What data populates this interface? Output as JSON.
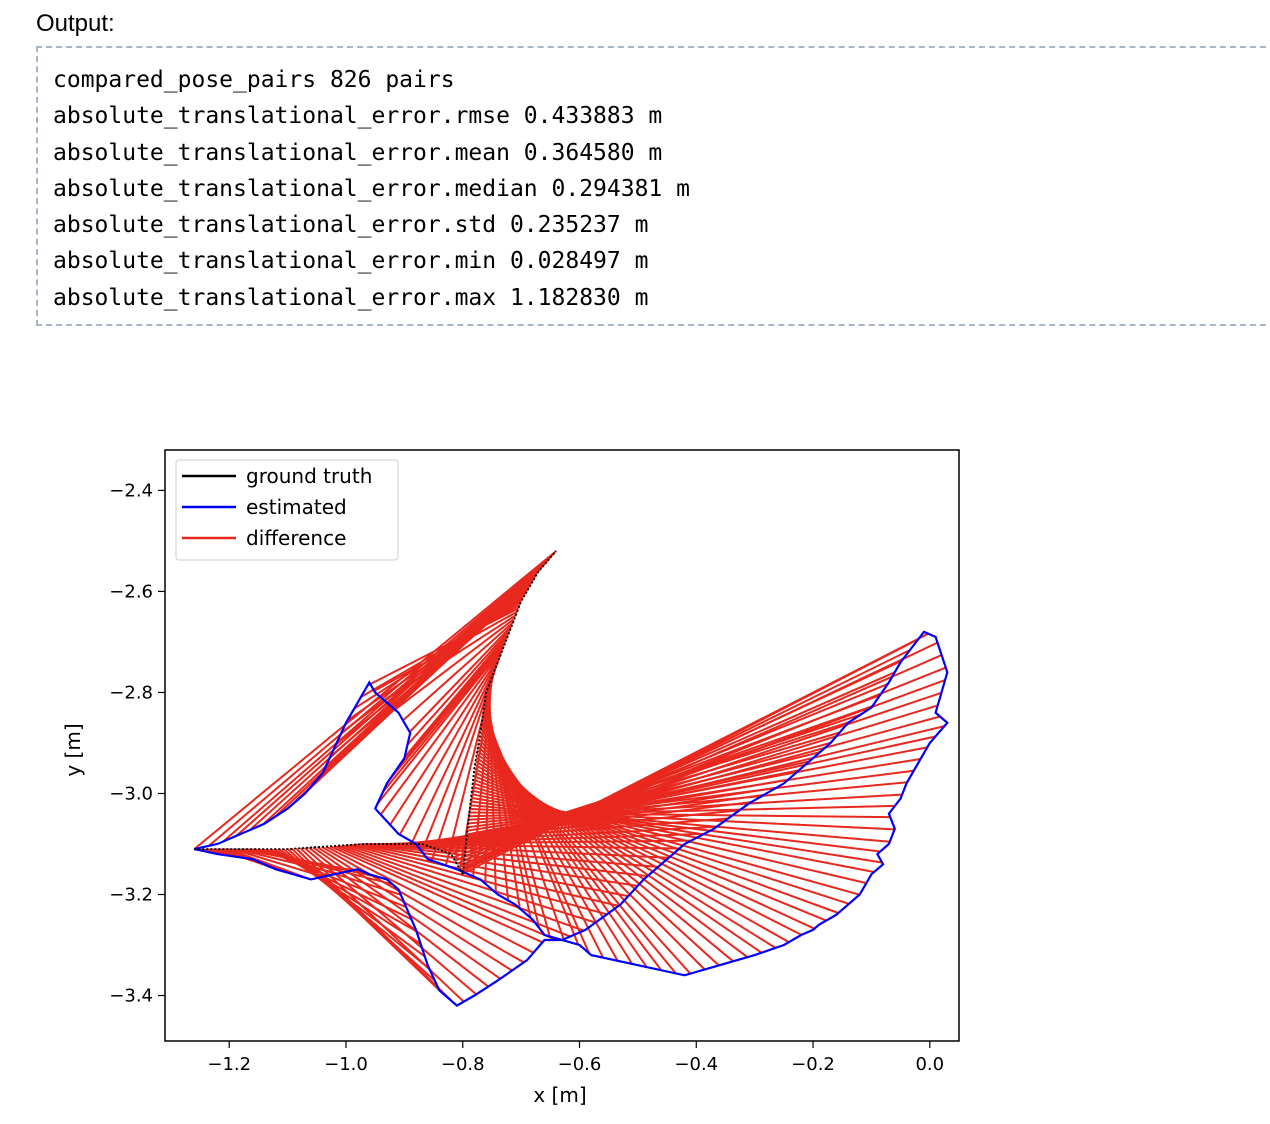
{
  "output_label": "Output:",
  "console_lines": [
    "compared_pose_pairs 826 pairs",
    "absolute_translational_error.rmse 0.433883 m",
    "absolute_translational_error.mean 0.364580 m",
    "absolute_translational_error.median 0.294381 m",
    "absolute_translational_error.std 0.235237 m",
    "absolute_translational_error.min 0.028497 m",
    "absolute_translational_error.max 1.182830 m"
  ],
  "chart_data": {
    "type": "line",
    "xlabel": "x [m]",
    "ylabel": "y [m]",
    "xlim": [
      -1.31,
      0.05
    ],
    "ylim": [
      -3.49,
      -2.32
    ],
    "xticks": [
      -1.2,
      -1.0,
      -0.8,
      -0.6,
      -0.4,
      -0.2,
      0.0
    ],
    "yticks": [
      -2.4,
      -2.6,
      -2.8,
      -3.0,
      -3.2,
      -3.4
    ],
    "xtick_labels": [
      "−1.2",
      "−1.0",
      "−0.8",
      "−0.6",
      "−0.4",
      "−0.2",
      "0.0"
    ],
    "ytick_labels": [
      "−2.4",
      "−2.6",
      "−2.8",
      "−3.0",
      "−3.2",
      "−3.4"
    ],
    "legend_position": "top-left",
    "grid": false,
    "series": [
      {
        "name": "ground truth",
        "color": "#000000",
        "x": [
          -1.26,
          -1.1,
          -0.97,
          -0.87,
          -0.82,
          -0.8,
          -0.79,
          -0.78,
          -0.77,
          -0.76,
          -0.74,
          -0.72,
          -0.7,
          -0.67,
          -0.64
        ],
        "y": [
          -3.11,
          -3.11,
          -3.1,
          -3.1,
          -3.12,
          -3.16,
          -3.05,
          -2.95,
          -2.88,
          -2.8,
          -2.74,
          -2.68,
          -2.62,
          -2.56,
          -2.52
        ]
      },
      {
        "name": "estimated",
        "color": "#0000ff",
        "x": [
          -1.26,
          -1.22,
          -1.16,
          -1.12,
          -1.09,
          -1.06,
          -1.02,
          -0.98,
          -0.96,
          -0.93,
          -0.91,
          -0.88,
          -0.86,
          -0.84,
          -0.81,
          -0.78,
          -0.74,
          -0.69,
          -0.66,
          -0.63,
          -0.59,
          -0.53,
          -0.49,
          -0.46,
          -0.42,
          -0.37,
          -0.31,
          -0.25,
          -0.21,
          -0.17,
          -0.14,
          -0.1,
          -0.07,
          -0.05,
          -0.03,
          -0.01,
          0.01,
          0.03,
          0.02,
          0.01,
          0.03,
          0.0,
          -0.02,
          -0.04,
          -0.05,
          -0.07,
          -0.06,
          -0.07,
          -0.09,
          -0.08,
          -0.1,
          -0.11,
          -0.12,
          -0.14,
          -0.16,
          -0.19,
          -0.2,
          -0.22,
          -0.25,
          -0.3,
          -0.36,
          -0.42,
          -0.5,
          -0.58,
          -0.6,
          -0.66,
          -0.68,
          -0.71,
          -0.74,
          -0.77,
          -0.81,
          -0.86,
          -0.88,
          -0.91,
          -0.95,
          -0.93,
          -0.9,
          -0.89,
          -0.91,
          -0.95,
          -0.96,
          -0.98,
          -1.0,
          -1.02,
          -1.04,
          -1.07,
          -1.1,
          -1.14,
          -1.18,
          -1.22,
          -1.26
        ],
        "y": [
          -3.11,
          -3.12,
          -3.13,
          -3.15,
          -3.16,
          -3.17,
          -3.16,
          -3.15,
          -3.16,
          -3.17,
          -3.19,
          -3.27,
          -3.34,
          -3.39,
          -3.42,
          -3.4,
          -3.37,
          -3.33,
          -3.29,
          -3.29,
          -3.27,
          -3.22,
          -3.17,
          -3.14,
          -3.1,
          -3.07,
          -3.02,
          -2.98,
          -2.94,
          -2.9,
          -2.86,
          -2.83,
          -2.78,
          -2.74,
          -2.71,
          -2.68,
          -2.69,
          -2.76,
          -2.8,
          -2.84,
          -2.86,
          -2.9,
          -2.94,
          -2.98,
          -3.01,
          -3.04,
          -3.07,
          -3.1,
          -3.12,
          -3.14,
          -3.16,
          -3.18,
          -3.2,
          -3.22,
          -3.24,
          -3.26,
          -3.27,
          -3.28,
          -3.3,
          -3.32,
          -3.34,
          -3.36,
          -3.34,
          -3.32,
          -3.3,
          -3.28,
          -3.25,
          -3.22,
          -3.2,
          -3.17,
          -3.15,
          -3.13,
          -3.1,
          -3.08,
          -3.03,
          -2.98,
          -2.93,
          -2.88,
          -2.84,
          -2.8,
          -2.78,
          -2.82,
          -2.86,
          -2.91,
          -2.96,
          -3.0,
          -3.03,
          -3.06,
          -3.08,
          -3.1,
          -3.11
        ]
      },
      {
        "name": "difference",
        "color": "#e8281e"
      }
    ]
  }
}
